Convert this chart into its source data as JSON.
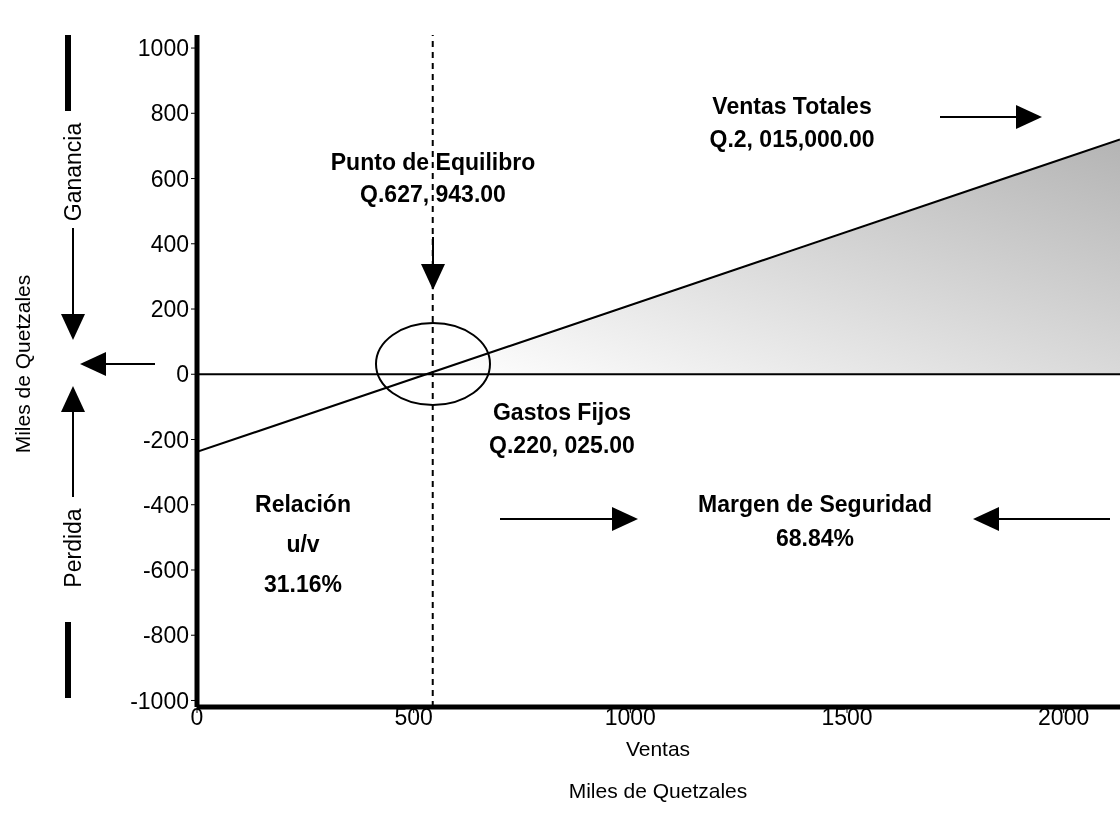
{
  "chart_data": {
    "type": "line",
    "xlabel": "Ventas",
    "ylabel": "Miles de Quetzales",
    "xlim": [
      0,
      2130
    ],
    "ylim": [
      -1020,
      1040
    ],
    "xticks": [
      0,
      500,
      1000,
      1500,
      2000
    ],
    "yticks": [
      -1000,
      -800,
      -600,
      -400,
      -200,
      0,
      200,
      400,
      600,
      800,
      1000
    ],
    "grid": false,
    "marker": "none",
    "series": [
      {
        "type": "area",
        "color": "#b4b4b4",
        "x": [
          544,
          2130
        ],
        "values": [
          0,
          720
        ]
      },
      {
        "color": "#000000",
        "x": [
          0,
          2130
        ],
        "values": [
          -238,
          720
        ]
      }
    ],
    "ref_lines": [
      {
        "axis": "x",
        "value": 544,
        "line_style": "dashed",
        "color": "#000000"
      },
      {
        "axis": "y",
        "value": 0,
        "line_style": "solid",
        "color": "#000000"
      }
    ],
    "annotations": [
      "Punto de Equilibro\nQ.627, 943.00",
      "Ventas Totales\nQ.2, 015,000.00",
      "Gastos Fijos\nQ.220, 025.00",
      "Relación\nu/v\n31.16%",
      "Margen de Seguridad\n68.84%",
      "Ganancia",
      "Perdida",
      "Miles de Quetzales"
    ]
  }
}
